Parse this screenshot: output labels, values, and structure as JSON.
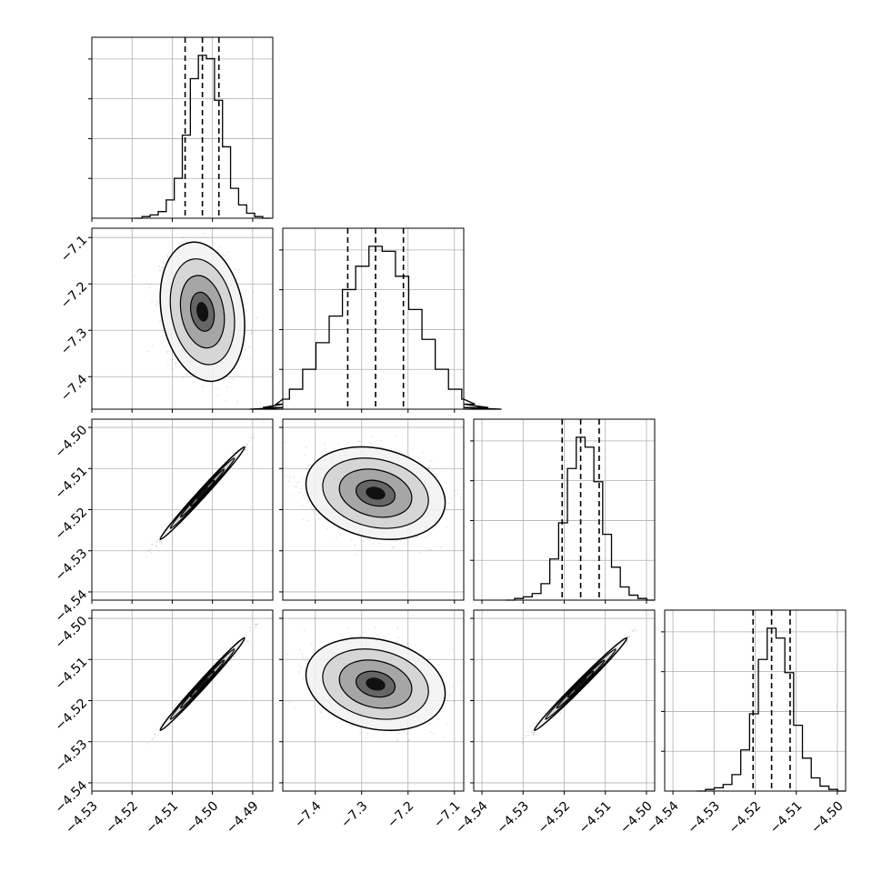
{
  "chart_data": {
    "type": "corner",
    "grid": true,
    "variables": [
      {
        "range": [
          -4.53,
          -4.485
        ],
        "ticks": [
          -4.53,
          -4.52,
          -4.51,
          -4.5,
          -4.49
        ],
        "tick_labels": [
          "−4.53",
          "−4.52",
          "−4.51",
          "−4.50",
          "−4.49"
        ],
        "quantiles": [
          -4.5068,
          -4.5025,
          -4.4984
        ]
      },
      {
        "range": [
          -7.47,
          -7.08
        ],
        "ticks": [
          -7.4,
          -7.3,
          -7.2,
          -7.1
        ],
        "tick_labels": [
          "−7.4",
          "−7.3",
          "−7.2",
          "−7.1"
        ],
        "quantiles": [
          -7.33,
          -7.27,
          -7.21
        ]
      },
      {
        "range": [
          -4.542,
          -4.498
        ],
        "ticks": [
          -4.54,
          -4.53,
          -4.52,
          -4.51,
          -4.5
        ],
        "tick_labels": [
          "−4.54",
          "−4.53",
          "−4.52",
          "−4.51",
          "−4.50"
        ],
        "quantiles": [
          -4.5205,
          -4.516,
          -4.5115
        ]
      },
      {
        "range": [
          -4.542,
          -4.498
        ],
        "ticks": [
          -4.54,
          -4.53,
          -4.52,
          -4.51,
          -4.5
        ],
        "tick_labels": [
          "−4.54",
          "−4.53",
          "−4.52",
          "−4.51",
          "−4.50"
        ],
        "quantiles": [
          -4.5205,
          -4.516,
          -4.5115
        ]
      }
    ],
    "histograms": [
      {
        "counts": [
          0,
          1,
          2,
          4,
          11,
          24,
          50,
          84,
          98,
          96,
          71,
          43,
          18,
          8,
          3,
          1,
          0
        ]
      },
      {
        "counts": [
          0,
          1,
          3,
          6,
          12,
          24,
          40,
          56,
          72,
          86,
          98,
          95,
          80,
          60,
          42,
          24,
          12,
          6,
          3,
          1,
          0
        ]
      },
      {
        "counts": [
          0,
          1,
          2,
          4,
          10,
          25,
          47,
          80,
          99,
          93,
          72,
          40,
          20,
          8,
          3,
          1,
          0
        ]
      },
      {
        "counts": [
          0,
          1,
          2,
          4,
          10,
          25,
          47,
          80,
          99,
          93,
          72,
          40,
          20,
          8,
          3,
          1,
          0
        ]
      }
    ],
    "pairs": [
      {
        "row": 1,
        "col": 0,
        "mean": [
          -4.5025,
          -7.26
        ],
        "sd": [
          0.0042,
          0.06
        ],
        "rho": -0.2
      },
      {
        "row": 2,
        "col": 0,
        "mean": [
          -4.5025,
          -4.516
        ],
        "sd": [
          0.0042,
          0.0045
        ],
        "rho": 0.992
      },
      {
        "row": 2,
        "col": 1,
        "mean": [
          -7.27,
          -4.516
        ],
        "sd": [
          0.06,
          0.0045
        ],
        "rho": -0.2
      },
      {
        "row": 3,
        "col": 0,
        "mean": [
          -4.5025,
          -4.516
        ],
        "sd": [
          0.0042,
          0.0045
        ],
        "rho": 0.992
      },
      {
        "row": 3,
        "col": 1,
        "mean": [
          -7.27,
          -4.516
        ],
        "sd": [
          0.06,
          0.0045
        ],
        "rho": -0.2
      },
      {
        "row": 3,
        "col": 2,
        "mean": [
          -4.516,
          -4.516
        ],
        "sd": [
          0.0045,
          0.0045
        ],
        "rho": 0.992
      }
    ]
  }
}
